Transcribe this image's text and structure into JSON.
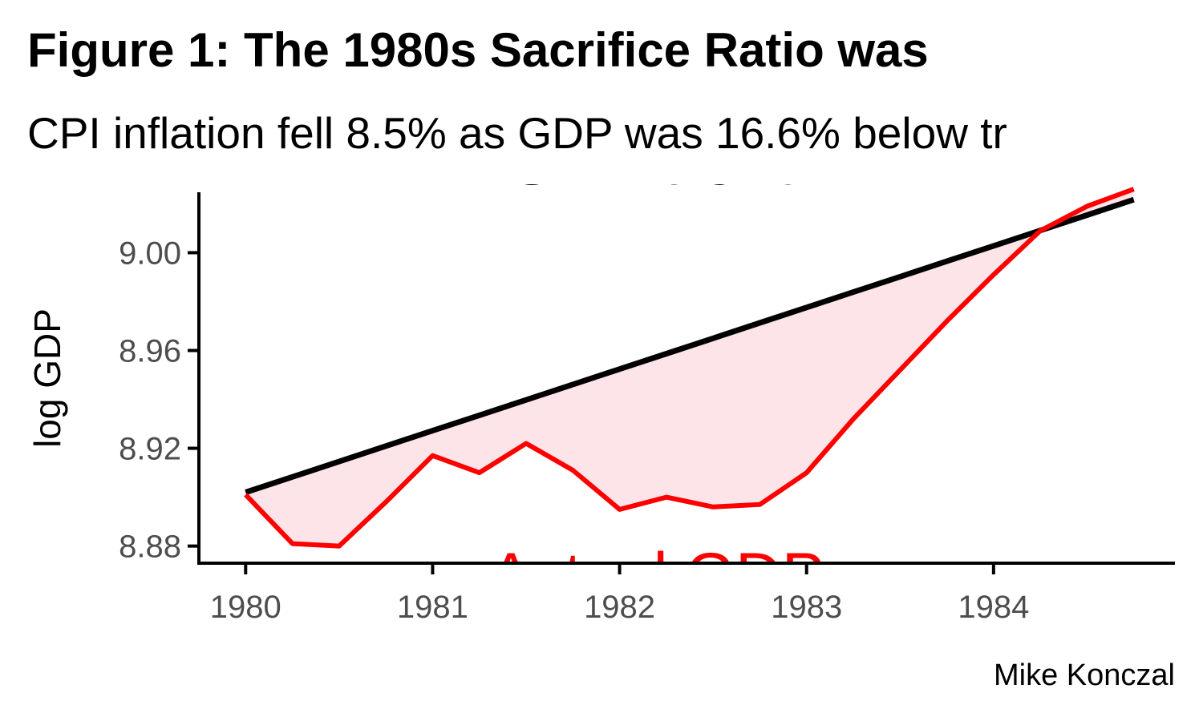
{
  "title": "Figure 1: The 1980s Sacrifice Ratio was",
  "subtitle": "CPI inflation fell 8.5% as GDP was 16.6% below tr",
  "caption": "Mike Konczal",
  "colors": {
    "actual": "#ff0000",
    "trend": "#000000",
    "fill": "#fde4e8",
    "tick": "#4d4d4d"
  },
  "chart_data": {
    "type": "line",
    "ylabel": "log GDP",
    "xlabel": "",
    "xlim": [
      1979.75,
      1984.97
    ],
    "ylim": [
      8.873,
      9.028
    ],
    "x_ticks": [
      1980,
      1981,
      1982,
      1983,
      1984
    ],
    "x_tick_labels": [
      "1980",
      "1981",
      "1982",
      "1983",
      "1984"
    ],
    "y_ticks": [
      8.88,
      8.92,
      8.96,
      9.0
    ],
    "y_tick_labels": [
      "8.88",
      "8.92",
      "8.96",
      "9.00"
    ],
    "grid": false,
    "x": [
      1980.0,
      1980.25,
      1980.5,
      1980.75,
      1981.0,
      1981.25,
      1981.5,
      1981.75,
      1982.0,
      1982.25,
      1982.5,
      1982.75,
      1983.0,
      1983.25,
      1983.5,
      1983.75,
      1984.0,
      1984.25,
      1984.5,
      1984.75
    ],
    "series": [
      {
        "name": "Actual GDP",
        "values": [
          8.901,
          8.881,
          8.88,
          8.898,
          8.917,
          8.91,
          8.922,
          8.911,
          8.895,
          8.9,
          8.896,
          8.897,
          8.91,
          8.932,
          8.952,
          8.972,
          8.991,
          9.009,
          9.019,
          9.026
        ]
      },
      {
        "name": "GDP trend",
        "values": [
          8.902,
          8.9083,
          8.9146,
          8.9209,
          8.9272,
          8.9335,
          8.9398,
          8.9461,
          8.9524,
          8.9587,
          8.965,
          8.9713,
          8.9776,
          8.9839,
          8.9902,
          8.9965,
          9.0028,
          9.0091,
          9.0154,
          9.0217
        ]
      }
    ],
    "annotations": [
      {
        "text": "GDP trend",
        "x": 1982.2,
        "y": 9.028,
        "color": "#000000"
      },
      {
        "text": "Actual GDP",
        "x": 1982.2,
        "y": 8.859,
        "color": "#ff0000"
      }
    ]
  }
}
